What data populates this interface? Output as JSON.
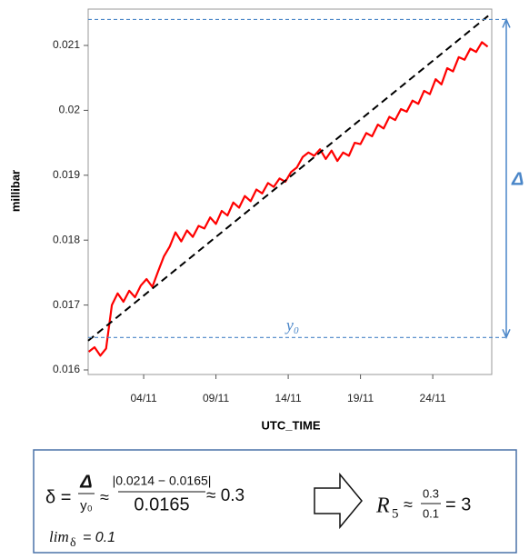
{
  "chart_data": {
    "type": "line",
    "x_label": "UTC_TIME",
    "y_label": "millibar",
    "xlim": [
      0.16,
      28.08
    ],
    "xticks": [
      {
        "value": 4,
        "label": "04/11"
      },
      {
        "value": 9,
        "label": "09/11"
      },
      {
        "value": 14,
        "label": "14/11"
      },
      {
        "value": 19,
        "label": "19/11"
      },
      {
        "value": 24,
        "label": "24/11"
      }
    ],
    "ylim": [
      0.01593,
      0.02156
    ],
    "yticks": [
      0.016,
      0.017,
      0.018,
      0.019,
      0.02,
      0.021
    ],
    "series": [
      {
        "color": "#ff0000",
        "x": [
          0.2,
          0.6,
          1.0,
          1.4,
          1.8,
          2.2,
          2.6,
          3.0,
          3.4,
          3.8,
          4.2,
          4.6,
          5.0,
          5.4,
          5.8,
          6.2,
          6.6,
          7.0,
          7.4,
          7.8,
          8.2,
          8.6,
          9.0,
          9.4,
          9.8,
          10.2,
          10.6,
          11.0,
          11.4,
          11.8,
          12.2,
          12.6,
          13.0,
          13.4,
          13.8,
          14.2,
          14.6,
          15.0,
          15.4,
          15.8,
          16.2,
          16.6,
          17.0,
          17.4,
          17.8,
          18.2,
          18.6,
          19.0,
          19.4,
          19.8,
          20.2,
          20.6,
          21.0,
          21.4,
          21.8,
          22.2,
          22.6,
          23.0,
          23.4,
          23.8,
          24.2,
          24.6,
          25.0,
          25.4,
          25.8,
          26.2,
          26.6,
          27.0,
          27.4,
          27.8
        ],
        "values": [
          0.01628,
          0.01635,
          0.01622,
          0.01633,
          0.017,
          0.01718,
          0.01705,
          0.01722,
          0.01712,
          0.0173,
          0.0174,
          0.01728,
          0.01752,
          0.01775,
          0.0179,
          0.01812,
          0.01798,
          0.01815,
          0.01805,
          0.01822,
          0.01818,
          0.01835,
          0.01825,
          0.01845,
          0.01838,
          0.01858,
          0.0185,
          0.01868,
          0.0186,
          0.01878,
          0.01872,
          0.01888,
          0.01882,
          0.01895,
          0.0189,
          0.01905,
          0.01912,
          0.01928,
          0.01935,
          0.0193,
          0.0194,
          0.01925,
          0.01938,
          0.01922,
          0.01935,
          0.0193,
          0.0195,
          0.01948,
          0.01965,
          0.0196,
          0.01978,
          0.01972,
          0.0199,
          0.01985,
          0.02002,
          0.01998,
          0.02015,
          0.0201,
          0.0203,
          0.02025,
          0.02048,
          0.0204,
          0.02065,
          0.0206,
          0.02082,
          0.02078,
          0.02095,
          0.0209,
          0.02105,
          0.02098
        ]
      },
      {
        "color": "#000000",
        "line_style": "dashed",
        "x": [
          0.16,
          28.08
        ],
        "values": [
          0.01645,
          0.0215
        ]
      }
    ],
    "reference_lines": [
      {
        "value": 0.0214,
        "color": "#4a86c8",
        "label": "Δ"
      },
      {
        "value": 0.0165,
        "color": "#4a86c8",
        "label": "y₀"
      }
    ]
  },
  "formula": {
    "delta": "δ =",
    "frac1_num": "Δ",
    "frac1_den": "y₀",
    "approx1": "≈",
    "frac2_num": "|0.0214 − 0.0165|",
    "frac2_den": "0.0165",
    "result1": "≈ 0.3",
    "lim": "lim",
    "lim_sub": "δ",
    "lim_value": "= 0.1",
    "r": "R",
    "r_sub": "5",
    "approx2": "≈",
    "frac3_num": "0.3",
    "frac3_den": "0.1",
    "result2": "= 3"
  }
}
